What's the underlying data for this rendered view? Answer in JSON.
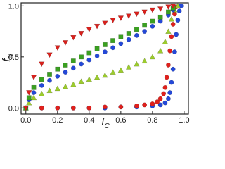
{
  "chart_data": {
    "type": "scatter",
    "x_label": {
      "main": "f",
      "sub": "C"
    },
    "y_label": {
      "main": "f",
      "sub": "N"
    },
    "xlim": [
      -0.03,
      1.027
    ],
    "ylim": [
      -0.06,
      1.03
    ],
    "xticks": [
      {
        "value": 0,
        "label": "0.0"
      },
      0.2,
      0.4,
      0.6,
      0.8,
      {
        "value": 1,
        "label": "1.0"
      }
    ],
    "yticks": [
      {
        "value": 0,
        "label": "0.0"
      },
      0.5,
      {
        "value": 1,
        "label": "1.0"
      }
    ],
    "series": [
      {
        "color": "#2448d8",
        "marker": "circle",
        "x": [
          0,
          0.1,
          0.2,
          0.3,
          0.4,
          0.5,
          0.6,
          0.7,
          0.8,
          0.85,
          0.88,
          0.9,
          0.91,
          0.92,
          0.93,
          0.94,
          0.95,
          0.96,
          0.97,
          0.98
        ],
        "values": [
          0,
          0,
          0,
          0,
          0,
          0,
          0.01,
          0.01,
          0.02,
          0.03,
          0.05,
          0.09,
          0.15,
          0.25,
          0.38,
          0.55,
          0.72,
          0.86,
          0.95,
          1.0
        ]
      },
      {
        "color": "#e0201c",
        "marker": "circle",
        "x": [
          0,
          0.1,
          0.2,
          0.3,
          0.4,
          0.5,
          0.6,
          0.7,
          0.75,
          0.8,
          0.83,
          0.85,
          0.87,
          0.88,
          0.89,
          0.9,
          0.91,
          0.92,
          0.93,
          0.94,
          0.95
        ],
        "values": [
          0,
          0,
          0,
          0,
          0,
          0.01,
          0.01,
          0.02,
          0.03,
          0.04,
          0.06,
          0.09,
          0.14,
          0.2,
          0.3,
          0.42,
          0.56,
          0.7,
          0.82,
          0.92,
          0.99
        ]
      },
      {
        "color": "#9ccc2c",
        "marker": "triangle-up",
        "x": [
          0,
          0.02,
          0.05,
          0.1,
          0.15,
          0.2,
          0.25,
          0.3,
          0.35,
          0.4,
          0.45,
          0.5,
          0.55,
          0.6,
          0.65,
          0.7,
          0.75,
          0.8,
          0.85,
          0.88,
          0.9,
          0.92,
          0.94,
          0.96
        ],
        "values": [
          0,
          0.05,
          0.1,
          0.14,
          0.17,
          0.19,
          0.21,
          0.23,
          0.26,
          0.28,
          0.3,
          0.32,
          0.35,
          0.37,
          0.4,
          0.43,
          0.46,
          0.5,
          0.56,
          0.65,
          0.75,
          0.87,
          0.96,
          1.0
        ]
      },
      {
        "color": "#2448d8",
        "marker": "circle",
        "x": [
          0,
          0.02,
          0.05,
          0.1,
          0.15,
          0.2,
          0.25,
          0.3,
          0.35,
          0.4,
          0.45,
          0.5,
          0.55,
          0.6,
          0.65,
          0.7,
          0.75,
          0.8,
          0.85,
          0.9,
          0.93
        ],
        "values": [
          0,
          0.08,
          0.15,
          0.22,
          0.27,
          0.31,
          0.35,
          0.39,
          0.43,
          0.47,
          0.51,
          0.55,
          0.59,
          0.63,
          0.67,
          0.71,
          0.75,
          0.8,
          0.85,
          0.91,
          0.96
        ]
      },
      {
        "color": "#3aa020",
        "marker": "square",
        "x": [
          0,
          0.02,
          0.05,
          0.1,
          0.15,
          0.2,
          0.25,
          0.3,
          0.35,
          0.4,
          0.45,
          0.5,
          0.55,
          0.6,
          0.65,
          0.7,
          0.75,
          0.8,
          0.85,
          0.9,
          0.93
        ],
        "values": [
          0,
          0.1,
          0.2,
          0.28,
          0.33,
          0.38,
          0.42,
          0.46,
          0.5,
          0.54,
          0.58,
          0.62,
          0.66,
          0.7,
          0.73,
          0.77,
          0.81,
          0.85,
          0.89,
          0.94,
          0.98
        ]
      },
      {
        "color": "#d8201c",
        "marker": "triangle-down",
        "x": [
          0,
          0.02,
          0.05,
          0.1,
          0.15,
          0.2,
          0.25,
          0.3,
          0.35,
          0.4,
          0.45,
          0.5,
          0.55,
          0.6,
          0.65,
          0.7,
          0.75,
          0.8,
          0.85,
          0.9,
          0.93
        ],
        "values": [
          0,
          0.15,
          0.3,
          0.43,
          0.52,
          0.59,
          0.64,
          0.69,
          0.73,
          0.77,
          0.8,
          0.83,
          0.86,
          0.88,
          0.9,
          0.92,
          0.94,
          0.96,
          0.97,
          0.99,
          1.0
        ]
      }
    ]
  }
}
